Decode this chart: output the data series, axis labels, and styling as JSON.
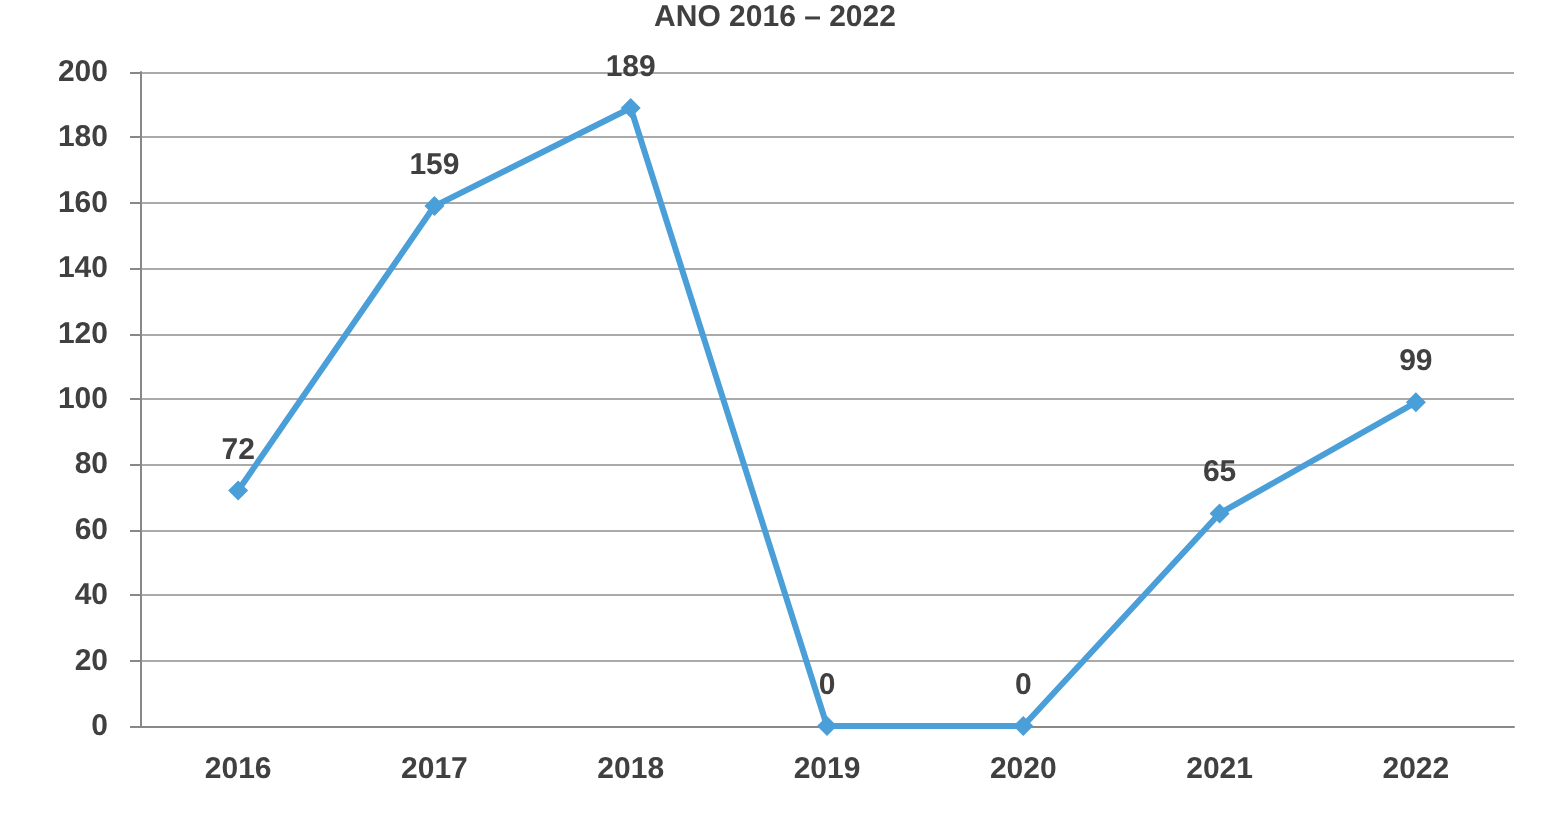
{
  "chart_data": {
    "type": "line",
    "title": "ANO 2016 – 2022",
    "categories": [
      "2016",
      "2017",
      "2018",
      "2019",
      "2020",
      "2021",
      "2022"
    ],
    "series": [
      {
        "color": "#4a9fd8",
        "values": [
          72,
          159,
          189,
          0,
          0,
          65,
          99
        ]
      }
    ],
    "ylim": [
      0,
      200
    ],
    "yticks": [
      0,
      20,
      40,
      60,
      80,
      100,
      120,
      140,
      160,
      180,
      200
    ],
    "grid": "y",
    "marker": "diamond",
    "data_labels": true
  }
}
